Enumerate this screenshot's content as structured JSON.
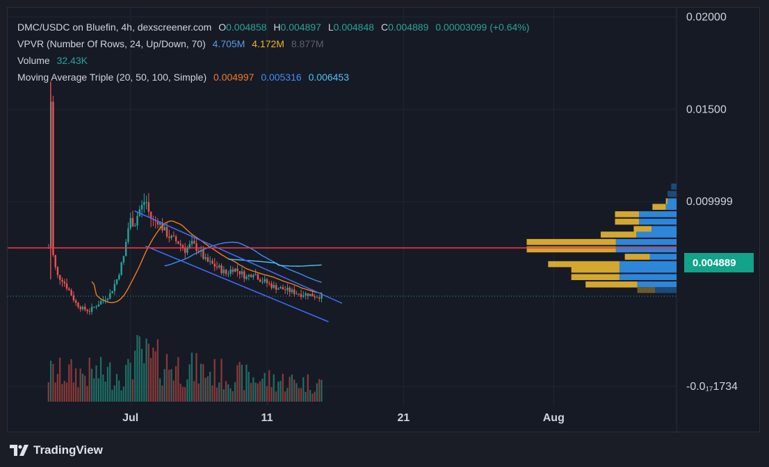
{
  "legend": {
    "title": "DMC/USDC on Bluefin, 4h, dexscreener.com",
    "o_key": "O",
    "o_val": "0.004858",
    "h_key": "H",
    "h_val": "0.004897",
    "l_key": "L",
    "l_val": "0.004848",
    "c_key": "C",
    "c_val": "0.004889",
    "change": "0.00003099 (+0.64%)",
    "vpvr_label": "VPVR (Number Of Rows, 24, Up/Down, 70)",
    "vpvr_up": "4.705M",
    "vpvr_down": "4.172M",
    "vpvr_total": "8.877M",
    "volume_label": "Volume",
    "volume_val": "32.43K",
    "ma_label": "Moving Average Triple (20, 50, 100, Simple)",
    "ma1_val": "0.004997",
    "ma2_val": "0.005316",
    "ma3_val": "0.006453"
  },
  "last_price": "0.004889",
  "brand": {
    "name": "TradingView"
  },
  "colors": {
    "up": "#26a69a",
    "down": "#ef5350",
    "ma20": "#f57c1f",
    "ma50": "#3d8ff5",
    "ma100": "#4fc3f7",
    "channel": "#3d6cf5",
    "hline": "#f23645",
    "vp_up": "#2e86d9",
    "vp_down": "#d4a82f",
    "vp_up_dim": "#1f4a78",
    "vp_down_dim": "#6b5a2a",
    "price_tag": "#12a38a"
  },
  "chart_data": {
    "type": "candlestick",
    "y_axis_labels": [
      "0.02000",
      "0.01500",
      "0.009999",
      "-0.0₁₇1734"
    ],
    "x_axis_labels": [
      "Jul",
      "11",
      "21",
      "Aug"
    ],
    "x_axis_dates": [
      "2024-07-01",
      "2024-07-11",
      "2024-07-21",
      "2024-08-01"
    ],
    "ylim": [
      -0.0015,
      0.0205
    ],
    "xlim_days": [
      "2024-06-22",
      "2024-08-10"
    ],
    "price_data": {
      "start_date": "2024-06-25",
      "points": [
        [
          0.0,
          0.0075
        ],
        [
          0.15,
          0.0165
        ],
        [
          0.3,
          0.0072
        ],
        [
          0.6,
          0.006
        ],
        [
          1.0,
          0.0058
        ],
        [
          1.5,
          0.0052
        ],
        [
          2.0,
          0.0045
        ],
        [
          2.5,
          0.0042
        ],
        [
          3.0,
          0.0041
        ],
        [
          3.5,
          0.0044
        ],
        [
          4.0,
          0.0047
        ],
        [
          4.5,
          0.005
        ],
        [
          5.0,
          0.0058
        ],
        [
          5.5,
          0.007
        ],
        [
          5.8,
          0.0085
        ],
        [
          6.0,
          0.009
        ],
        [
          6.3,
          0.0088
        ],
        [
          6.6,
          0.0095
        ],
        [
          6.9,
          0.0098
        ],
        [
          7.1,
          0.0102
        ],
        [
          7.4,
          0.0092
        ],
        [
          7.7,
          0.0089
        ],
        [
          8.0,
          0.009
        ],
        [
          8.5,
          0.0084
        ],
        [
          9.0,
          0.008
        ],
        [
          9.5,
          0.0078
        ],
        [
          10.0,
          0.0074
        ],
        [
          10.5,
          0.0077
        ],
        [
          11.0,
          0.0074
        ],
        [
          11.5,
          0.0068
        ],
        [
          12.0,
          0.0066
        ],
        [
          12.5,
          0.0064
        ],
        [
          13.0,
          0.0061
        ],
        [
          13.5,
          0.0064
        ],
        [
          14.0,
          0.0062
        ],
        [
          14.5,
          0.0059
        ],
        [
          15.0,
          0.0062
        ],
        [
          15.5,
          0.0058
        ],
        [
          16.0,
          0.0056
        ],
        [
          16.5,
          0.0054
        ],
        [
          17.0,
          0.0053
        ],
        [
          17.5,
          0.0052
        ],
        [
          18.0,
          0.0051
        ],
        [
          18.5,
          0.005
        ],
        [
          19.0,
          0.005
        ],
        [
          19.5,
          0.0049
        ],
        [
          20.0,
          0.004889
        ]
      ]
    },
    "channel": {
      "upper": [
        [
          6.3,
          0.0095
        ],
        [
          21.5,
          0.0045
        ]
      ],
      "lower": [
        [
          7.1,
          0.0076
        ],
        [
          20.5,
          0.0035
        ]
      ]
    },
    "horizontal_line": 0.0075,
    "volume_profile": [
      {
        "price": 0.0108,
        "up": 0.06,
        "down": 0.0
      },
      {
        "price": 0.0104,
        "up": 0.1,
        "down": 0.0
      },
      {
        "price": 0.01,
        "up": 0.1,
        "down": 0.02
      },
      {
        "price": 0.0097,
        "up": 0.12,
        "down": 0.15
      },
      {
        "price": 0.0093,
        "up": 0.42,
        "down": 0.27
      },
      {
        "price": 0.0089,
        "up": 0.42,
        "down": 0.27
      },
      {
        "price": 0.0085,
        "up": 0.28,
        "down": 0.2
      },
      {
        "price": 0.0082,
        "up": 0.45,
        "down": 0.4
      },
      {
        "price": 0.0078,
        "up": 0.68,
        "down": 1.0
      },
      {
        "price": 0.0074,
        "up": 0.68,
        "down": 1.0
      },
      {
        "price": 0.007,
        "up": 0.3,
        "down": 0.28
      },
      {
        "price": 0.0066,
        "up": 0.64,
        "down": 0.8
      },
      {
        "price": 0.0063,
        "up": 0.64,
        "down": 0.54
      },
      {
        "price": 0.0059,
        "up": 0.64,
        "down": 0.54
      },
      {
        "price": 0.0055,
        "up": 0.44,
        "down": 0.58
      },
      {
        "price": 0.0052,
        "up": 0.24,
        "down": 0.2
      }
    ]
  }
}
